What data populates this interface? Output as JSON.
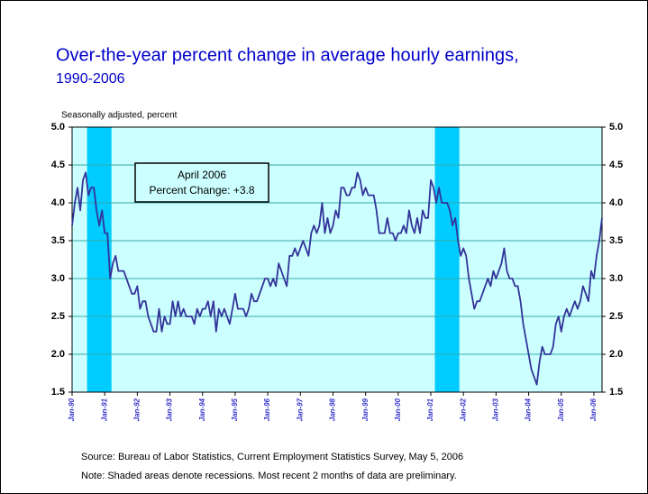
{
  "chart_data": {
    "type": "line",
    "title": "Over-the-year percent change in average hourly earnings,",
    "subtitle": "1990-2006",
    "y_label": "Seasonally adjusted, percent",
    "annotation": {
      "title": "April 2006",
      "text": "Percent Change: +3.8"
    },
    "source": "Source:  Bureau of Labor Statistics, Current Employment Statistics Survey, May 5, 2006",
    "note": "Note: Shaded areas denote recessions.  Most recent 2 months of data are preliminary.",
    "categories": [
      "Jan-90",
      null,
      null,
      null,
      null,
      null,
      null,
      null,
      null,
      null,
      null,
      null,
      "Jan-91",
      null,
      null,
      null,
      null,
      null,
      null,
      null,
      null,
      null,
      null,
      null,
      "Jan-92",
      null,
      null,
      null,
      null,
      null,
      null,
      null,
      null,
      null,
      null,
      null,
      "Jan-93",
      null,
      null,
      null,
      null,
      null,
      null,
      null,
      null,
      null,
      null,
      null,
      "Jan-94",
      null,
      null,
      null,
      null,
      null,
      null,
      null,
      null,
      null,
      null,
      null,
      "Jan-95",
      null,
      null,
      null,
      null,
      null,
      null,
      null,
      null,
      null,
      null,
      null,
      "Jan-96",
      null,
      null,
      null,
      null,
      null,
      null,
      null,
      null,
      null,
      null,
      null,
      "Jan-97",
      null,
      null,
      null,
      null,
      null,
      null,
      null,
      null,
      null,
      null,
      null,
      "Jan-98",
      null,
      null,
      null,
      null,
      null,
      null,
      null,
      null,
      null,
      null,
      null,
      "Jan-99",
      null,
      null,
      null,
      null,
      null,
      null,
      null,
      null,
      null,
      null,
      null,
      "Jan-00",
      null,
      null,
      null,
      null,
      null,
      null,
      null,
      null,
      null,
      null,
      null,
      "Jan-01",
      null,
      null,
      null,
      null,
      null,
      null,
      null,
      null,
      null,
      null,
      null,
      "Jan-02",
      null,
      null,
      null,
      null,
      null,
      null,
      null,
      null,
      null,
      null,
      null,
      "Jan-03",
      null,
      null,
      null,
      null,
      null,
      null,
      null,
      null,
      null,
      null,
      null,
      "Jan-04",
      null,
      null,
      null,
      null,
      null,
      null,
      null,
      null,
      null,
      null,
      null,
      "Jan-05",
      null,
      null,
      null,
      null,
      null,
      null,
      null,
      null,
      null,
      null,
      null,
      "Jan-06",
      null,
      null,
      null
    ],
    "values": [
      3.7,
      4.0,
      4.2,
      3.9,
      4.3,
      4.4,
      4.1,
      4.2,
      4.2,
      3.9,
      3.7,
      3.9,
      3.6,
      3.6,
      3.0,
      3.2,
      3.3,
      3.1,
      3.1,
      3.1,
      3.0,
      2.9,
      2.8,
      2.8,
      2.9,
      2.6,
      2.7,
      2.7,
      2.5,
      2.4,
      2.3,
      2.3,
      2.6,
      2.3,
      2.5,
      2.4,
      2.4,
      2.7,
      2.5,
      2.7,
      2.5,
      2.6,
      2.5,
      2.5,
      2.5,
      2.4,
      2.6,
      2.5,
      2.6,
      2.6,
      2.7,
      2.5,
      2.7,
      2.3,
      2.6,
      2.5,
      2.6,
      2.5,
      2.4,
      2.6,
      2.8,
      2.6,
      2.6,
      2.6,
      2.5,
      2.6,
      2.8,
      2.7,
      2.7,
      2.8,
      2.9,
      3.0,
      3.0,
      2.9,
      3.0,
      2.9,
      3.2,
      3.1,
      3.0,
      2.9,
      3.3,
      3.3,
      3.4,
      3.3,
      3.4,
      3.5,
      3.4,
      3.3,
      3.6,
      3.7,
      3.6,
      3.7,
      4.0,
      3.6,
      3.8,
      3.6,
      3.7,
      3.9,
      3.8,
      4.2,
      4.2,
      4.1,
      4.1,
      4.2,
      4.2,
      4.4,
      4.3,
      4.1,
      4.2,
      4.1,
      4.1,
      4.1,
      3.9,
      3.6,
      3.6,
      3.6,
      3.8,
      3.6,
      3.6,
      3.5,
      3.6,
      3.6,
      3.7,
      3.6,
      3.9,
      3.7,
      3.6,
      3.8,
      3.6,
      3.9,
      3.8,
      3.8,
      4.3,
      4.2,
      4.0,
      4.2,
      4.0,
      4.0,
      4.0,
      3.9,
      3.7,
      3.8,
      3.5,
      3.3,
      3.4,
      3.3,
      3.0,
      2.8,
      2.6,
      2.7,
      2.7,
      2.8,
      2.9,
      3.0,
      2.9,
      3.1,
      3.0,
      3.1,
      3.2,
      3.4,
      3.1,
      3.0,
      3.0,
      2.9,
      2.9,
      2.7,
      2.4,
      2.2,
      2.0,
      1.8,
      1.7,
      1.6,
      1.9,
      2.1,
      2.0,
      2.0,
      2.0,
      2.1,
      2.4,
      2.5,
      2.3,
      2.5,
      2.6,
      2.5,
      2.6,
      2.7,
      2.6,
      2.7,
      2.9,
      2.8,
      2.7,
      3.1,
      3.0,
      3.3,
      3.5,
      3.8
    ],
    "color": "#333399",
    "recession_color": "#00ccff",
    "recessions": [
      {
        "start": 6,
        "end": 14
      },
      {
        "start": 134,
        "end": 142
      }
    ],
    "ylim": [
      1.5,
      5.0
    ],
    "yticks": [
      1.5,
      {
        "value": 2,
        "label": "2.0"
      },
      2.5,
      {
        "value": 3,
        "label": "3.0"
      },
      3.5,
      {
        "value": 4,
        "label": "4.0"
      },
      4.5,
      {
        "value": 5,
        "label": "5.0"
      }
    ],
    "grid": true
  }
}
